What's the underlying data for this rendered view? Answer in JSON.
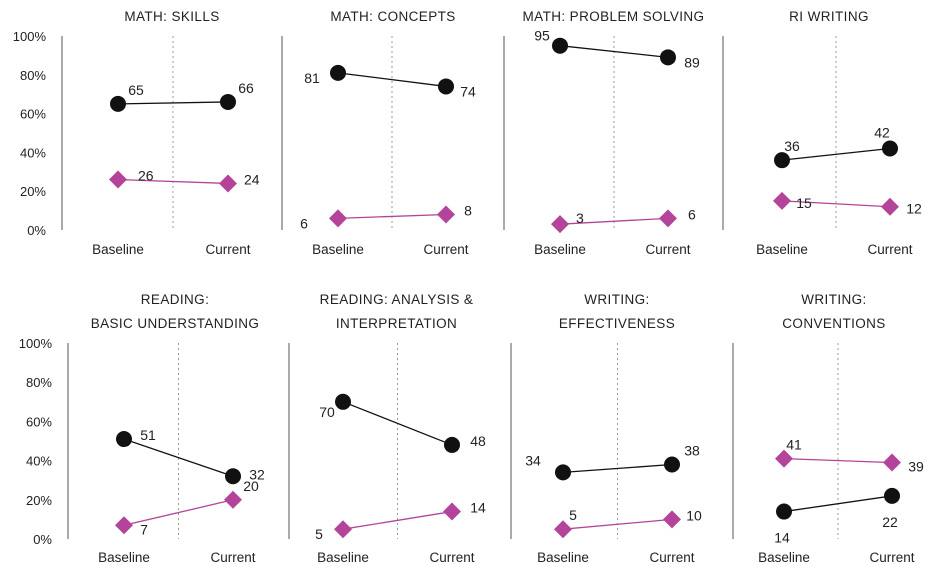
{
  "colors": {
    "baseline_series": "#111111",
    "magenta_series": "#b4449a",
    "axis": "#555555",
    "divider": "#999999"
  },
  "chart_data": [
    {
      "type": "line",
      "title": "MATH: SKILLS",
      "categories": [
        "Baseline",
        "Current"
      ],
      "ylim": [
        0,
        100
      ],
      "yticks": [
        "0%",
        "20%",
        "40%",
        "60%",
        "80%",
        "100%"
      ],
      "series": [
        {
          "marker": "circle",
          "values": [
            65,
            66
          ]
        },
        {
          "marker": "diamond",
          "values": [
            26,
            24
          ]
        }
      ]
    },
    {
      "type": "line",
      "title": "MATH: CONCEPTS",
      "categories": [
        "Baseline",
        "Current"
      ],
      "ylim": [
        0,
        100
      ],
      "series": [
        {
          "marker": "circle",
          "values": [
            81,
            74
          ]
        },
        {
          "marker": "diamond",
          "values": [
            6,
            8
          ]
        }
      ]
    },
    {
      "type": "line",
      "title": "MATH: PROBLEM SOLVING",
      "categories": [
        "Baseline",
        "Current"
      ],
      "ylim": [
        0,
        100
      ],
      "series": [
        {
          "marker": "circle",
          "values": [
            95,
            89
          ]
        },
        {
          "marker": "diamond",
          "values": [
            3,
            6
          ]
        }
      ]
    },
    {
      "type": "line",
      "title": "RI WRITING",
      "categories": [
        "Baseline",
        "Current"
      ],
      "ylim": [
        0,
        100
      ],
      "series": [
        {
          "marker": "circle",
          "values": [
            36,
            42
          ]
        },
        {
          "marker": "diamond",
          "values": [
            15,
            12
          ]
        }
      ]
    },
    {
      "type": "line",
      "title": "READING: BASIC UNDERSTANDING",
      "title_lines": [
        "READING:",
        "BASIC UNDERSTANDING"
      ],
      "categories": [
        "Baseline",
        "Current"
      ],
      "ylim": [
        0,
        100
      ],
      "yticks": [
        "0%",
        "20%",
        "40%",
        "60%",
        "80%",
        "100%"
      ],
      "series": [
        {
          "marker": "circle",
          "values": [
            51,
            32
          ]
        },
        {
          "marker": "diamond",
          "values": [
            7,
            20
          ]
        }
      ]
    },
    {
      "type": "line",
      "title": "READING: ANALYSIS & INTERPRETATION",
      "title_lines": [
        "READING: ANALYSIS &",
        "INTERPRETATION"
      ],
      "categories": [
        "Baseline",
        "Current"
      ],
      "ylim": [
        0,
        100
      ],
      "series": [
        {
          "marker": "circle",
          "values": [
            70,
            48
          ]
        },
        {
          "marker": "diamond",
          "values": [
            5,
            14
          ]
        }
      ]
    },
    {
      "type": "line",
      "title": "WRITING: EFFECTIVENESS",
      "title_lines": [
        "WRITING:",
        "EFFECTIVENESS"
      ],
      "categories": [
        "Baseline",
        "Current"
      ],
      "ylim": [
        0,
        100
      ],
      "series": [
        {
          "marker": "circle",
          "values": [
            34,
            38
          ]
        },
        {
          "marker": "diamond",
          "values": [
            5,
            10
          ]
        }
      ]
    },
    {
      "type": "line",
      "title": "WRITING: CONVENTIONS",
      "title_lines": [
        "WRITING:",
        "CONVENTIONS"
      ],
      "categories": [
        "Baseline",
        "Current"
      ],
      "ylim": [
        0,
        100
      ],
      "series": [
        {
          "marker": "circle",
          "values": [
            14,
            22
          ]
        },
        {
          "marker": "diamond",
          "values": [
            41,
            39
          ]
        }
      ]
    }
  ]
}
